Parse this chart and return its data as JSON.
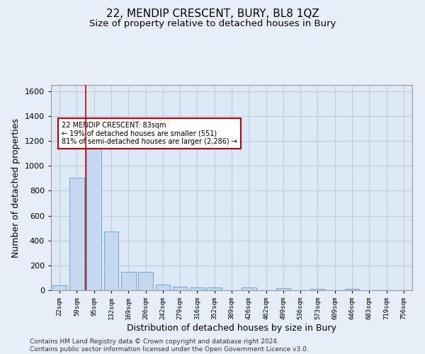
{
  "title": "22, MENDIP CRESCENT, BURY, BL8 1QZ",
  "subtitle": "Size of property relative to detached houses in Bury",
  "xlabel": "Distribution of detached houses by size in Bury",
  "ylabel": "Number of detached properties",
  "categories": [
    "22sqm",
    "59sqm",
    "95sqm",
    "132sqm",
    "169sqm",
    "206sqm",
    "242sqm",
    "279sqm",
    "316sqm",
    "352sqm",
    "389sqm",
    "426sqm",
    "462sqm",
    "499sqm",
    "536sqm",
    "573sqm",
    "609sqm",
    "646sqm",
    "683sqm",
    "719sqm",
    "756sqm"
  ],
  "values": [
    40,
    905,
    1190,
    470,
    150,
    150,
    48,
    30,
    20,
    20,
    0,
    20,
    0,
    15,
    0,
    12,
    0,
    10,
    0,
    0,
    0
  ],
  "bar_color": "#c5d8f0",
  "bar_edge_color": "#6aaad4",
  "vline_color": "#cc0000",
  "annotation_text": "22 MENDIP CRESCENT: 83sqm\n← 19% of detached houses are smaller (551)\n81% of semi-detached houses are larger (2,286) →",
  "annotation_box_color": "#ffffff",
  "annotation_box_edge_color": "#cc0000",
  "ylim": [
    0,
    1650
  ],
  "yticks": [
    0,
    200,
    400,
    600,
    800,
    1000,
    1200,
    1400,
    1600
  ],
  "bg_color": "#e8eef7",
  "plot_bg_color": "#dce8f5",
  "grid_color": "#c0cedf",
  "footer": "Contains HM Land Registry data © Crown copyright and database right 2024.\nContains public sector information licensed under the Open Government Licence v3.0.",
  "title_fontsize": 11,
  "subtitle_fontsize": 9.5,
  "xlabel_fontsize": 9,
  "ylabel_fontsize": 9,
  "footer_fontsize": 6.5
}
